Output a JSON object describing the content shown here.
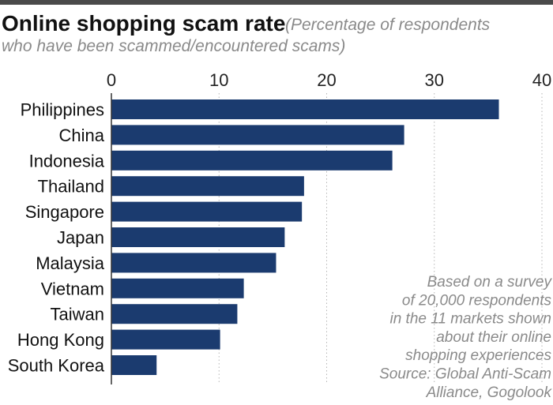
{
  "chart_data": {
    "type": "bar",
    "orientation": "horizontal",
    "title": "Online shopping scam rate",
    "subtitle": "(Percentage of respondents who have been scammed/encountered scams)",
    "subtitle_lines": [
      "(Percentage of respondents",
      "who have been scammed/encountered scams)"
    ],
    "categories": [
      "Philippines",
      "China",
      "Indonesia",
      "Thailand",
      "Singapore",
      "Japan",
      "Malaysia",
      "Vietnam",
      "Taiwan",
      "Hong Kong",
      "South Korea"
    ],
    "values": [
      36,
      27.2,
      26.1,
      17.9,
      17.7,
      16.1,
      15.3,
      12.3,
      11.7,
      10.1,
      4.2
    ],
    "xlim": [
      0,
      40
    ],
    "xticks": [
      0,
      10,
      20,
      30,
      40
    ],
    "xaxis_position": "top",
    "grid": "vertical dotted",
    "bar_color": "#1b3b6f",
    "note_lines": [
      "Based on a survey",
      "of 20,000 respondents",
      "in the 11 markets shown",
      "about their online",
      "shopping experiences"
    ],
    "source_lines": [
      "Source: Global Anti-Scam",
      "Alliance, Gogolook"
    ]
  }
}
